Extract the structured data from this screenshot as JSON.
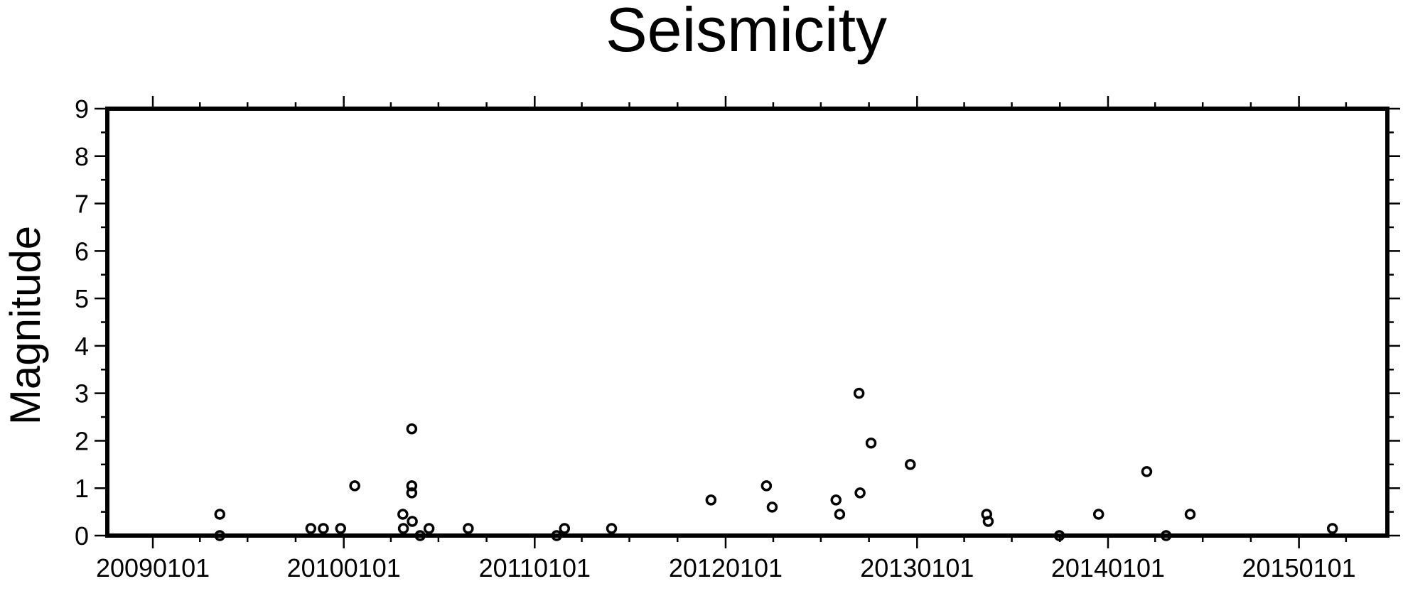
{
  "chart_data": {
    "type": "scatter",
    "title": "Seismicity",
    "xlabel": "",
    "ylabel": "Magnitude",
    "x_axis": {
      "kind": "date",
      "min": "2008-10-06",
      "max": "2015-06-19",
      "major_ticks": [
        "2009-01-01",
        "2010-01-01",
        "2011-01-01",
        "2012-01-01",
        "2013-01-01",
        "2014-01-01",
        "2015-01-01"
      ],
      "major_tick_labels": [
        "20090101",
        "20100101",
        "20110101",
        "20120101",
        "20130101",
        "20140101",
        "20150101"
      ]
    },
    "y_axis": {
      "min": 0,
      "max": 9,
      "ticks": [
        0,
        1,
        2,
        3,
        4,
        5,
        6,
        7,
        8,
        9
      ],
      "tick_labels": [
        "0",
        "1",
        "2",
        "3",
        "4",
        "5",
        "6",
        "7",
        "8",
        "9"
      ]
    },
    "marker": "open-circle",
    "marker_color": "#000000",
    "grid": false,
    "legend": "none",
    "points": [
      {
        "date": "2009-05-09",
        "magnitude": 0.45
      },
      {
        "date": "2009-05-09",
        "magnitude": 0.0
      },
      {
        "date": "2009-10-30",
        "magnitude": 0.15
      },
      {
        "date": "2009-11-23",
        "magnitude": 0.15
      },
      {
        "date": "2009-12-26",
        "magnitude": 0.15
      },
      {
        "date": "2010-01-22",
        "magnitude": 1.05
      },
      {
        "date": "2010-04-24",
        "magnitude": 0.45
      },
      {
        "date": "2010-04-25",
        "magnitude": 0.15
      },
      {
        "date": "2010-05-11",
        "magnitude": 2.25
      },
      {
        "date": "2010-05-11",
        "magnitude": 1.05
      },
      {
        "date": "2010-05-11",
        "magnitude": 0.9
      },
      {
        "date": "2010-05-12",
        "magnitude": 0.3
      },
      {
        "date": "2010-05-27",
        "magnitude": 0.0
      },
      {
        "date": "2010-06-13",
        "magnitude": 0.15
      },
      {
        "date": "2010-08-27",
        "magnitude": 0.15
      },
      {
        "date": "2011-02-12",
        "magnitude": 0.0
      },
      {
        "date": "2011-02-27",
        "magnitude": 0.15
      },
      {
        "date": "2011-05-28",
        "magnitude": 0.15
      },
      {
        "date": "2011-12-04",
        "magnitude": 0.75
      },
      {
        "date": "2012-03-19",
        "magnitude": 1.05
      },
      {
        "date": "2012-03-30",
        "magnitude": 0.6
      },
      {
        "date": "2012-07-30",
        "magnitude": 0.75
      },
      {
        "date": "2012-08-06",
        "magnitude": 0.45
      },
      {
        "date": "2012-09-12",
        "magnitude": 3.0
      },
      {
        "date": "2012-09-14",
        "magnitude": 0.9
      },
      {
        "date": "2012-10-05",
        "magnitude": 1.95
      },
      {
        "date": "2012-12-19",
        "magnitude": 1.5
      },
      {
        "date": "2013-05-14",
        "magnitude": 0.45
      },
      {
        "date": "2013-05-17",
        "magnitude": 0.3
      },
      {
        "date": "2013-09-30",
        "magnitude": 0.0
      },
      {
        "date": "2013-12-14",
        "magnitude": 0.45
      },
      {
        "date": "2014-03-16",
        "magnitude": 1.35
      },
      {
        "date": "2014-04-22",
        "magnitude": 0.0
      },
      {
        "date": "2014-06-07",
        "magnitude": 0.45
      },
      {
        "date": "2015-03-06",
        "magnitude": 0.15
      }
    ]
  }
}
